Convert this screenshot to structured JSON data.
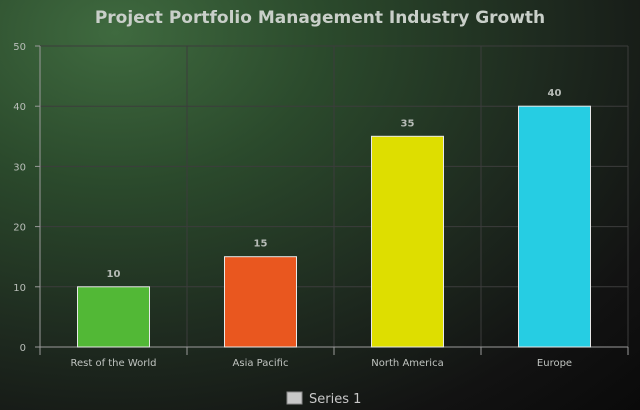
{
  "chart_data": {
    "type": "bar",
    "title": "Project Portfolio Management Industry Growth",
    "categories": [
      "Rest of the World",
      "Asia Pacific",
      "North America",
      "Europe"
    ],
    "series": [
      {
        "name": "Series 1",
        "values": [
          10,
          15,
          35,
          40
        ]
      }
    ],
    "bar_colors": [
      "#52b836",
      "#e9571f",
      "#dede00",
      "#26cde3"
    ],
    "ylim": [
      0,
      50
    ],
    "yticks": [
      "0",
      "10",
      "20",
      "30",
      "40",
      "50"
    ],
    "data_labels": [
      "10",
      "15",
      "35",
      "40"
    ],
    "grid": true,
    "legend_position": "bottom",
    "legend_swatch_color": "#c8c8c8"
  }
}
